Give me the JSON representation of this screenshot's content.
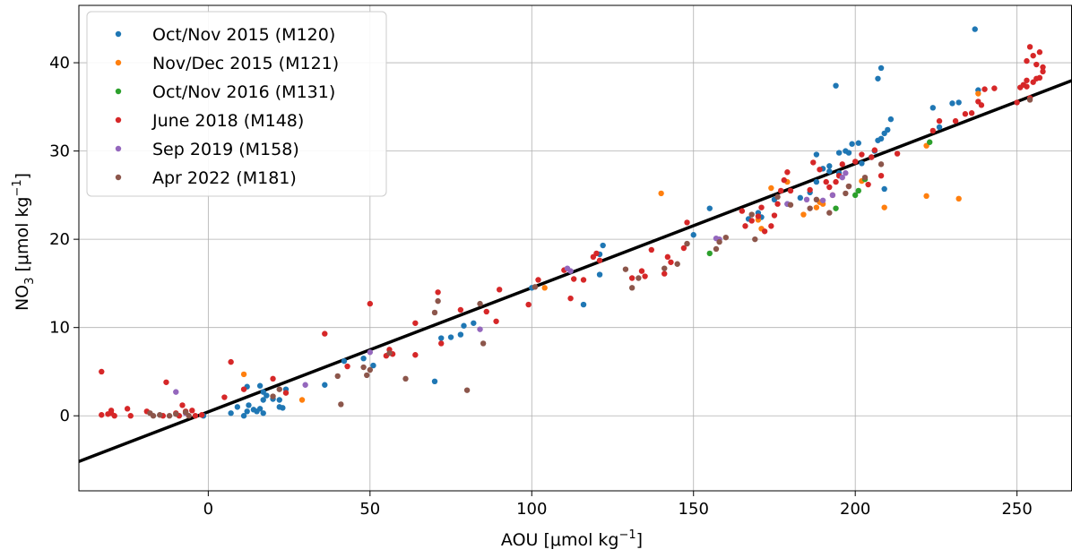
{
  "chart_data": {
    "type": "scatter",
    "xlabel_main": "AOU [μmol kg",
    "xlabel_sup": "−1",
    "xlabel_end": "]",
    "ylabel_main": "NO",
    "ylabel_sub": "3",
    "ylabel_mid": " [μmol kg",
    "ylabel_sup": "−1",
    "ylabel_end": "]",
    "xlim": [
      -40,
      267
    ],
    "ylim": [
      -8.5,
      46.5
    ],
    "xticks": [
      0,
      50,
      100,
      150,
      200,
      250
    ],
    "yticks": [
      0,
      10,
      20,
      30,
      40
    ],
    "grid": true,
    "legend_position": "upper-left",
    "fit_line": {
      "slope": 0.1406,
      "intercept": 0.45,
      "x_range": [
        -40,
        267
      ],
      "color": "#000000"
    },
    "series": [
      {
        "name": "Oct/Nov 2015 (M120)",
        "color": "#1f77b4",
        "points": [
          [
            -1.5,
            0
          ],
          [
            7,
            0.3
          ],
          [
            9,
            1
          ],
          [
            11,
            0
          ],
          [
            12,
            3.3
          ],
          [
            12,
            0.5
          ],
          [
            12.5,
            1.2
          ],
          [
            14,
            0.7
          ],
          [
            15,
            0.5
          ],
          [
            16,
            0.8
          ],
          [
            16,
            3.4
          ],
          [
            17,
            1.8
          ],
          [
            17,
            0.3
          ],
          [
            17,
            2.7
          ],
          [
            18,
            2.3
          ],
          [
            20,
            1.9
          ],
          [
            22,
            1
          ],
          [
            22,
            1.8
          ],
          [
            23,
            0.9
          ],
          [
            24,
            3
          ],
          [
            36,
            3.5
          ],
          [
            42,
            6.2
          ],
          [
            48,
            6.5
          ],
          [
            51,
            5.7
          ],
          [
            72,
            8.8
          ],
          [
            70,
            3.9
          ],
          [
            75,
            8.9
          ],
          [
            78,
            9.2
          ],
          [
            79,
            10.2
          ],
          [
            82,
            10.5
          ],
          [
            100,
            14.5
          ],
          [
            116,
            12.6
          ],
          [
            121,
            16
          ],
          [
            121,
            18.3
          ],
          [
            122,
            19.3
          ],
          [
            150,
            20.5
          ],
          [
            155,
            23.5
          ],
          [
            167,
            22.3
          ],
          [
            170,
            23
          ],
          [
            171,
            22.5
          ],
          [
            175,
            24.5
          ],
          [
            179,
            24
          ],
          [
            183,
            24.7
          ],
          [
            186,
            25.3
          ],
          [
            188,
            26.5
          ],
          [
            188,
            29.6
          ],
          [
            190,
            28
          ],
          [
            192,
            27.7
          ],
          [
            192,
            28.3
          ],
          [
            194,
            37.4
          ],
          [
            195,
            27.5
          ],
          [
            195,
            29.8
          ],
          [
            197,
            30
          ],
          [
            198,
            29.8
          ],
          [
            199,
            30.8
          ],
          [
            201,
            30.9
          ],
          [
            202,
            28.6
          ],
          [
            205,
            29.3
          ],
          [
            206,
            30
          ],
          [
            207,
            31.2
          ],
          [
            207,
            38.2
          ],
          [
            208,
            39.4
          ],
          [
            208,
            31.4
          ],
          [
            209,
            32
          ],
          [
            209,
            25.7
          ],
          [
            210,
            32.4
          ],
          [
            211,
            33.6
          ],
          [
            224,
            34.9
          ],
          [
            226,
            32.7
          ],
          [
            230,
            35.4
          ],
          [
            232,
            35.5
          ],
          [
            237,
            43.8
          ],
          [
            238,
            36.9
          ]
        ]
      },
      {
        "name": "Nov/Dec 2015 (M121)",
        "color": "#ff7f0e",
        "points": [
          [
            11,
            4.7
          ],
          [
            29,
            1.8
          ],
          [
            104,
            14.5
          ],
          [
            140,
            25.2
          ],
          [
            170,
            22.2
          ],
          [
            171,
            21.2
          ],
          [
            174,
            25.8
          ],
          [
            179,
            26.5
          ],
          [
            184,
            22.8
          ],
          [
            188,
            23.6
          ],
          [
            189,
            24.2
          ],
          [
            190,
            24
          ],
          [
            202,
            26.6
          ],
          [
            209,
            23.6
          ],
          [
            222,
            24.9
          ],
          [
            222,
            30.6
          ],
          [
            232,
            24.6
          ],
          [
            238,
            36.5
          ]
        ]
      },
      {
        "name": "Oct/Nov 2016 (M131)",
        "color": "#2ca02c",
        "points": [
          [
            155,
            18.4
          ],
          [
            194,
            23.5
          ],
          [
            200,
            25
          ],
          [
            201,
            25.5
          ],
          [
            203,
            26.8
          ],
          [
            223,
            31
          ]
        ]
      },
      {
        "name": "June 2018 (M148)",
        "color": "#d62728",
        "points": [
          [
            -33,
            5
          ],
          [
            -33,
            0.1
          ],
          [
            -31,
            0.2
          ],
          [
            -30,
            0.3
          ],
          [
            -30,
            0.6
          ],
          [
            -29,
            0
          ],
          [
            -25,
            0.8
          ],
          [
            -24,
            0
          ],
          [
            -19,
            0.5
          ],
          [
            -14,
            0
          ],
          [
            -13,
            3.8
          ],
          [
            -10,
            0.3
          ],
          [
            -9,
            0
          ],
          [
            -8,
            1.2
          ],
          [
            -7,
            0.5
          ],
          [
            -5,
            0.6
          ],
          [
            -4,
            0
          ],
          [
            -2,
            0.1
          ],
          [
            5,
            2.1
          ],
          [
            7,
            6.1
          ],
          [
            11,
            3
          ],
          [
            20,
            4.2
          ],
          [
            24,
            2.6
          ],
          [
            36,
            9.3
          ],
          [
            43,
            5.6
          ],
          [
            50,
            12.7
          ],
          [
            55,
            6.8
          ],
          [
            56,
            7.5
          ],
          [
            57,
            7
          ],
          [
            64,
            10.5
          ],
          [
            64,
            6.9
          ],
          [
            71,
            14
          ],
          [
            72,
            8.2
          ],
          [
            78,
            12
          ],
          [
            86,
            11.8
          ],
          [
            89,
            10.7
          ],
          [
            90,
            14.3
          ],
          [
            99,
            12.6
          ],
          [
            102,
            15.4
          ],
          [
            110,
            16.5
          ],
          [
            112,
            13.3
          ],
          [
            113,
            15.5
          ],
          [
            116,
            15.4
          ],
          [
            119,
            18
          ],
          [
            120,
            18.4
          ],
          [
            121,
            17.6
          ],
          [
            131,
            15.6
          ],
          [
            134,
            16.4
          ],
          [
            135,
            15.8
          ],
          [
            137,
            18.8
          ],
          [
            141,
            16.1
          ],
          [
            142,
            18
          ],
          [
            143,
            17.4
          ],
          [
            147,
            19
          ],
          [
            148,
            21.9
          ],
          [
            165,
            23.2
          ],
          [
            166,
            21.5
          ],
          [
            168,
            22.1
          ],
          [
            170,
            22.6
          ],
          [
            171,
            23.6
          ],
          [
            172,
            20.9
          ],
          [
            174,
            21.5
          ],
          [
            175,
            22.7
          ],
          [
            176,
            24
          ],
          [
            177,
            25.5
          ],
          [
            178,
            26.7
          ],
          [
            179,
            27.6
          ],
          [
            180,
            25.5
          ],
          [
            186,
            25.6
          ],
          [
            187,
            28.7
          ],
          [
            189,
            27.9
          ],
          [
            191,
            26.5
          ],
          [
            192,
            25.9
          ],
          [
            193,
            25
          ],
          [
            194,
            26.5
          ],
          [
            195,
            27.2
          ],
          [
            196,
            28.5
          ],
          [
            198,
            26
          ],
          [
            200,
            28.8
          ],
          [
            202,
            29.6
          ],
          [
            204,
            26.2
          ],
          [
            205,
            29.3
          ],
          [
            206,
            30.1
          ],
          [
            208,
            27.2
          ],
          [
            213,
            29.7
          ],
          [
            224,
            32.3
          ],
          [
            226,
            33.4
          ],
          [
            231,
            33.4
          ],
          [
            234,
            34.2
          ],
          [
            236,
            34.3
          ],
          [
            238,
            35.6
          ],
          [
            239,
            35.2
          ],
          [
            240,
            37
          ],
          [
            243,
            37.1
          ],
          [
            250,
            35.5
          ],
          [
            251,
            37.2
          ],
          [
            252,
            37.5
          ],
          [
            253,
            38
          ],
          [
            253,
            37.3
          ],
          [
            253,
            40.2
          ],
          [
            254,
            41.8
          ],
          [
            254,
            36
          ],
          [
            255,
            37.8
          ],
          [
            255,
            40.8
          ],
          [
            256,
            38.2
          ],
          [
            256,
            39.8
          ],
          [
            257,
            41.2
          ],
          [
            257,
            38.3
          ],
          [
            258,
            39.5
          ],
          [
            258,
            39
          ]
        ]
      },
      {
        "name": "Sep 2019 (M158)",
        "color": "#9467bd",
        "points": [
          [
            -10,
            2.7
          ],
          [
            -7,
            0.3
          ],
          [
            30,
            3.5
          ],
          [
            50,
            7.2
          ],
          [
            84,
            9.8
          ],
          [
            111,
            16.7
          ],
          [
            112,
            16.4
          ],
          [
            157,
            20.1
          ],
          [
            158,
            20
          ],
          [
            179,
            24
          ],
          [
            185,
            24.5
          ],
          [
            190,
            24.4
          ],
          [
            193,
            25
          ],
          [
            196,
            27
          ],
          [
            197,
            27.5
          ]
        ]
      },
      {
        "name": "Apr 2022 (M181)",
        "color": "#8c564b",
        "points": [
          [
            -18,
            0.3
          ],
          [
            -17,
            0
          ],
          [
            -15,
            0.1
          ],
          [
            -12,
            0
          ],
          [
            -10,
            0.2
          ],
          [
            -7,
            0.4
          ],
          [
            -6,
            0
          ],
          [
            20,
            2.2
          ],
          [
            22,
            3
          ],
          [
            40,
            4.5
          ],
          [
            41,
            1.3
          ],
          [
            48,
            5.5
          ],
          [
            49,
            4.6
          ],
          [
            50,
            5.2
          ],
          [
            56,
            7.1
          ],
          [
            61,
            4.2
          ],
          [
            70,
            11.7
          ],
          [
            71,
            13
          ],
          [
            80,
            2.9
          ],
          [
            84,
            12.7
          ],
          [
            85,
            8.2
          ],
          [
            101,
            14.6
          ],
          [
            129,
            16.6
          ],
          [
            131,
            14.5
          ],
          [
            133,
            15.6
          ],
          [
            141,
            16.7
          ],
          [
            145,
            17.2
          ],
          [
            148,
            19.5
          ],
          [
            157,
            18.9
          ],
          [
            158,
            19.7
          ],
          [
            160,
            20.2
          ],
          [
            168,
            22.8
          ],
          [
            169,
            20
          ],
          [
            176,
            24.8
          ],
          [
            180,
            23.9
          ],
          [
            186,
            23.5
          ],
          [
            188,
            24.5
          ],
          [
            192,
            23
          ],
          [
            197,
            25.2
          ],
          [
            198,
            26
          ],
          [
            203,
            27
          ],
          [
            208,
            28.5
          ],
          [
            254,
            35.8
          ]
        ]
      }
    ]
  }
}
